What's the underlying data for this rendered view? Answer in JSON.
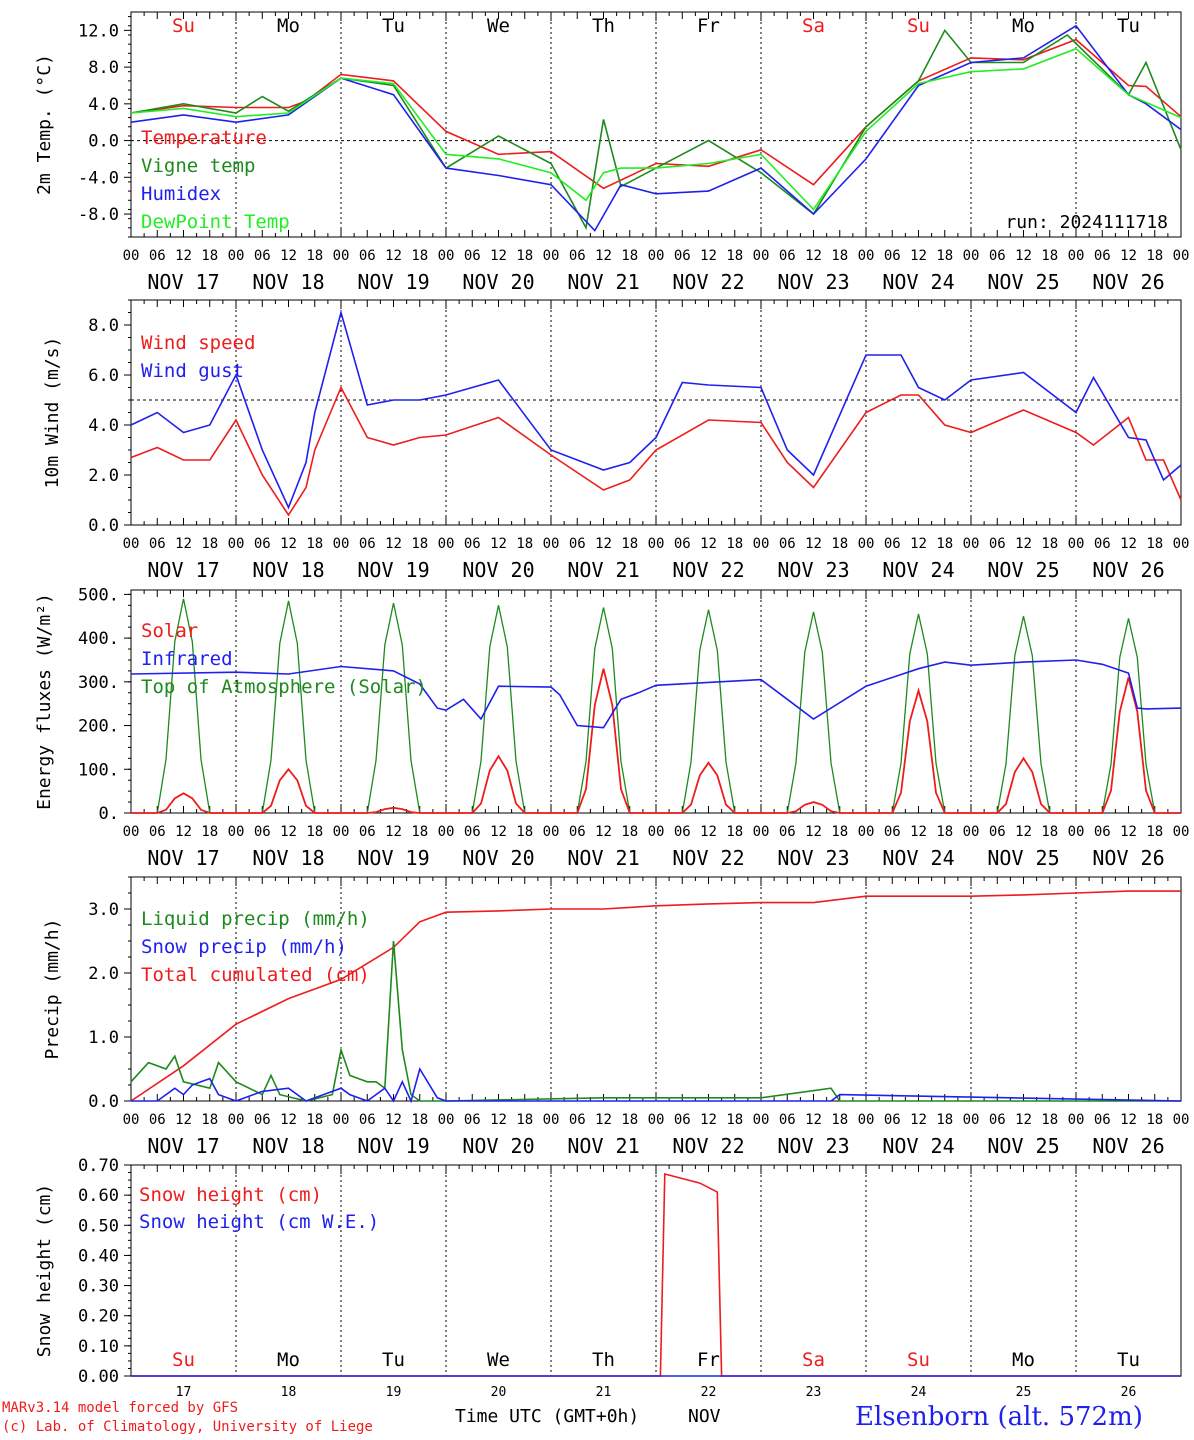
{
  "run_label": "run: 2024111718",
  "days_top": [
    "Su",
    "Mo",
    "Tu",
    "We",
    "Th",
    "Fr",
    "Sa",
    "Su",
    "Mo",
    "Tu"
  ],
  "weekend_color": "#ee1c1c",
  "weekday_color": "#000000",
  "date_labels": [
    "NOV 17",
    "NOV 18",
    "NOV 19",
    "NOV 20",
    "NOV 21",
    "NOV 22",
    "NOV 23",
    "NOV 24",
    "NOV 25",
    "NOV 26"
  ],
  "hour_ticks": [
    "00",
    "06",
    "12",
    "18"
  ],
  "bottom_axis": {
    "day_numbers": [
      "17",
      "18",
      "19",
      "20",
      "21",
      "22",
      "23",
      "24",
      "25",
      "26"
    ],
    "xlabel": "Time UTC (GMT+0h)",
    "month": "NOV"
  },
  "footer": {
    "credit_line1": "MARv3.14 model forced by GFS",
    "credit_line2": "(c) Lab. of Climatology, University of Liege",
    "station": "Elsenborn (alt. 572m)"
  },
  "colors": {
    "red": "#ee1c1c",
    "green": "#1e8a1e",
    "blue": "#2020ee",
    "lightgreen": "#22ee22"
  },
  "chart_data": [
    {
      "type": "line",
      "ylabel": "2m Temp. (°C)",
      "ylim": [
        -10.5,
        14.0
      ],
      "yticks": [
        -8,
        -4,
        0,
        4,
        8,
        12
      ],
      "ytick_labels": [
        "-8.0",
        "-4.0",
        "0.0",
        "4.0",
        "8.0",
        "12.0"
      ],
      "dashed_y": 0,
      "x_hours_from": 0,
      "x_units": "hours from 00 UTC Nov 17",
      "legend": [
        {
          "name": "Temperature",
          "color": "#ee1c1c"
        },
        {
          "name": "Vigne temp",
          "color": "#1e8a1e"
        },
        {
          "name": "Humidex",
          "color": "#2020ee"
        },
        {
          "name": "DewPoint Temp",
          "color": "#22ee22"
        }
      ],
      "series": [
        {
          "name": "Temperature",
          "color": "#ee1c1c",
          "x": [
            0,
            12,
            24,
            36,
            40,
            48,
            60,
            72,
            84,
            96,
            108,
            120,
            132,
            144,
            156,
            168,
            180,
            192,
            204,
            216,
            228,
            232,
            240
          ],
          "y": [
            3.0,
            3.8,
            3.6,
            3.6,
            4.3,
            7.2,
            6.5,
            1.0,
            -1.5,
            -1.2,
            -5.2,
            -2.5,
            -2.8,
            -1.0,
            -4.8,
            1.5,
            6.5,
            9.0,
            8.8,
            11.0,
            6.0,
            5.9,
            2.6
          ]
        },
        {
          "name": "Vigne temp",
          "color": "#1e8a1e",
          "x": [
            0,
            12,
            24,
            30,
            36,
            48,
            60,
            72,
            84,
            96,
            104,
            108,
            112,
            120,
            132,
            144,
            156,
            168,
            180,
            186,
            192,
            204,
            214,
            228,
            232,
            240
          ],
          "y": [
            3.0,
            4.0,
            3.0,
            4.8,
            3.2,
            6.8,
            6.0,
            -3.0,
            0.5,
            -2.5,
            -9.5,
            2.3,
            -5.0,
            -3.0,
            0.0,
            -3.5,
            -8.0,
            1.5,
            6.5,
            12.0,
            8.5,
            8.5,
            11.5,
            5.0,
            8.5,
            -1.0
          ]
        },
        {
          "name": "Humidex",
          "color": "#2020ee",
          "x": [
            0,
            12,
            24,
            36,
            48,
            60,
            72,
            84,
            96,
            106,
            112,
            120,
            132,
            144,
            156,
            168,
            180,
            192,
            204,
            216,
            228,
            232,
            240
          ],
          "y": [
            2.0,
            2.8,
            2.0,
            2.8,
            6.8,
            5.0,
            -3.0,
            -3.8,
            -4.8,
            -9.8,
            -4.8,
            -5.8,
            -5.5,
            -3.0,
            -8.0,
            -2.0,
            6.0,
            8.5,
            9.0,
            12.5,
            5.0,
            4.0,
            1.2
          ]
        },
        {
          "name": "DewPoint Temp",
          "color": "#22ee22",
          "x": [
            0,
            12,
            24,
            36,
            48,
            60,
            72,
            84,
            96,
            104,
            108,
            112,
            120,
            132,
            144,
            156,
            168,
            180,
            192,
            204,
            216,
            228,
            240
          ],
          "y": [
            3.0,
            3.5,
            2.6,
            3.0,
            6.8,
            6.2,
            -1.5,
            -2.0,
            -3.5,
            -6.5,
            -3.5,
            -3.0,
            -3.0,
            -2.5,
            -1.5,
            -7.5,
            1.0,
            6.2,
            7.5,
            7.8,
            10.0,
            5.0,
            2.5
          ]
        }
      ]
    },
    {
      "type": "line",
      "ylabel": "10m Wind (m/s)",
      "ylim": [
        0,
        9.0
      ],
      "yticks": [
        0,
        2,
        4,
        6,
        8
      ],
      "ytick_labels": [
        "0.0",
        "2.0",
        "4.0",
        "6.0",
        "8.0"
      ],
      "dashed_y": 5,
      "legend": [
        {
          "name": "Wind speed",
          "color": "#ee1c1c"
        },
        {
          "name": "Wind gust",
          "color": "#2020ee"
        }
      ],
      "series": [
        {
          "name": "Wind speed",
          "color": "#ee1c1c",
          "x": [
            0,
            6,
            12,
            18,
            24,
            30,
            36,
            40,
            42,
            48,
            54,
            60,
            66,
            72,
            84,
            96,
            108,
            114,
            120,
            132,
            144,
            150,
            156,
            168,
            176,
            180,
            186,
            192,
            204,
            216,
            220,
            228,
            232,
            236,
            240
          ],
          "y": [
            2.7,
            3.1,
            2.6,
            2.6,
            4.2,
            2.0,
            0.4,
            1.5,
            3.0,
            5.5,
            3.5,
            3.2,
            3.5,
            3.6,
            4.3,
            2.8,
            1.4,
            1.8,
            3.0,
            4.2,
            4.1,
            2.5,
            1.5,
            4.5,
            5.2,
            5.2,
            4.0,
            3.7,
            4.6,
            3.7,
            3.2,
            4.3,
            2.6,
            2.6,
            1.0
          ]
        },
        {
          "name": "Wind gust",
          "color": "#2020ee",
          "x": [
            0,
            6,
            12,
            18,
            24,
            30,
            36,
            40,
            42,
            48,
            54,
            60,
            66,
            72,
            84,
            96,
            108,
            114,
            120,
            126,
            132,
            144,
            150,
            156,
            168,
            176,
            180,
            186,
            192,
            204,
            216,
            220,
            228,
            232,
            236,
            240
          ],
          "y": [
            4.0,
            4.5,
            3.7,
            4.0,
            6.0,
            3.0,
            0.7,
            2.5,
            4.5,
            8.5,
            4.8,
            5.0,
            5.0,
            5.2,
            5.8,
            3.0,
            2.2,
            2.5,
            3.5,
            5.7,
            5.6,
            5.5,
            3.0,
            2.0,
            6.8,
            6.8,
            5.5,
            5.0,
            5.8,
            6.1,
            4.5,
            5.9,
            3.5,
            3.4,
            1.8,
            2.4
          ]
        }
      ]
    },
    {
      "type": "line",
      "ylabel": "Energy fluxes (W/m²)",
      "ylim": [
        0,
        510
      ],
      "yticks": [
        0,
        100,
        200,
        300,
        400,
        500
      ],
      "ytick_labels": [
        "0.",
        "100.",
        "200.",
        "300.",
        "400.",
        "500."
      ],
      "legend": [
        {
          "name": "Solar",
          "color": "#ee1c1c"
        },
        {
          "name": "Infrared",
          "color": "#2020ee"
        },
        {
          "name": "Top of Atmosphere (Solar)",
          "color": "#1e8a1e"
        }
      ],
      "solar_peaks": [
        45,
        100,
        12,
        130,
        330,
        115,
        25,
        280,
        125,
        310
      ],
      "toa_peaks": [
        490,
        485,
        480,
        475,
        470,
        465,
        460,
        455,
        450,
        445
      ],
      "series": [
        {
          "name": "Infrared",
          "color": "#2020ee",
          "x": [
            0,
            24,
            36,
            48,
            60,
            66,
            70,
            72,
            76,
            80,
            84,
            96,
            98,
            102,
            108,
            112,
            116,
            120,
            144,
            150,
            156,
            168,
            180,
            186,
            192,
            204,
            216,
            222,
            228,
            230,
            232,
            240
          ],
          "y": [
            318,
            322,
            318,
            335,
            325,
            295,
            240,
            235,
            260,
            215,
            290,
            288,
            270,
            200,
            195,
            260,
            275,
            292,
            305,
            260,
            215,
            290,
            330,
            345,
            338,
            345,
            350,
            340,
            320,
            240,
            238,
            240
          ]
        }
      ]
    },
    {
      "type": "line",
      "ylabel": "Precip (mm/h)",
      "ylim": [
        0,
        3.5
      ],
      "yticks": [
        0,
        1,
        2,
        3
      ],
      "ytick_labels": [
        "0.0",
        "1.0",
        "2.0",
        "3.0"
      ],
      "legend": [
        {
          "name": "Liquid precip (mm/h)",
          "color": "#1e8a1e"
        },
        {
          "name": "Snow precip (mm/h)",
          "color": "#2020ee"
        },
        {
          "name": "Total cumulated (cm)",
          "color": "#ee1c1c"
        }
      ],
      "series": [
        {
          "name": "Total cumulated (cm)",
          "color": "#ee1c1c",
          "x": [
            0,
            12,
            24,
            36,
            48,
            60,
            66,
            72,
            84,
            96,
            108,
            120,
            132,
            144,
            156,
            168,
            180,
            192,
            204,
            216,
            228,
            240
          ],
          "y": [
            0.0,
            0.55,
            1.2,
            1.6,
            1.9,
            2.4,
            2.8,
            2.95,
            2.97,
            3.0,
            3.0,
            3.05,
            3.08,
            3.1,
            3.1,
            3.2,
            3.2,
            3.2,
            3.22,
            3.25,
            3.28,
            3.28
          ]
        },
        {
          "name": "Liquid precip (mm/h)",
          "color": "#1e8a1e",
          "x": [
            0,
            4,
            8,
            10,
            12,
            18,
            20,
            24,
            30,
            32,
            34,
            40,
            46,
            48,
            50,
            52,
            54,
            56,
            58,
            60,
            62,
            64,
            66,
            72,
            108,
            144,
            160,
            162,
            168,
            240
          ],
          "y": [
            0.3,
            0.6,
            0.5,
            0.7,
            0.3,
            0.2,
            0.6,
            0.3,
            0.1,
            0.4,
            0.1,
            0.0,
            0.1,
            0.8,
            0.4,
            0.35,
            0.3,
            0.3,
            0.2,
            2.5,
            0.8,
            0.1,
            0.0,
            0.0,
            0.05,
            0.05,
            0.2,
            0.0,
            0.0,
            0.0
          ]
        },
        {
          "name": "Snow precip (mm/h)",
          "color": "#2020ee",
          "x": [
            0,
            6,
            10,
            12,
            14,
            16,
            18,
            20,
            24,
            30,
            36,
            40,
            44,
            48,
            50,
            54,
            56,
            58,
            60,
            62,
            64,
            66,
            70,
            72,
            160,
            162,
            240
          ],
          "y": [
            0.0,
            0.0,
            0.2,
            0.1,
            0.25,
            0.3,
            0.35,
            0.1,
            0.0,
            0.15,
            0.2,
            0.0,
            0.1,
            0.2,
            0.1,
            0.0,
            0.1,
            0.2,
            0.0,
            0.3,
            0.0,
            0.5,
            0.05,
            0.0,
            0.0,
            0.1,
            0.0
          ]
        }
      ]
    },
    {
      "type": "line",
      "ylabel": "Snow height (cm)",
      "ylim": [
        0,
        0.7
      ],
      "yticks": [
        0,
        0.1,
        0.2,
        0.3,
        0.4,
        0.5,
        0.6,
        0.7
      ],
      "ytick_labels": [
        "0.00",
        "0.10",
        "0.20",
        "0.30",
        "0.40",
        "0.50",
        "0.60",
        "0.70"
      ],
      "legend": [
        {
          "name": "Snow height (cm)",
          "color": "#ee1c1c"
        },
        {
          "name": "Snow height (cm W.E.)",
          "color": "#2020ee"
        }
      ],
      "series": [
        {
          "name": "Snow height (cm)",
          "color": "#ee1c1c",
          "x": [
            0,
            121,
            122,
            130,
            134,
            135,
            240
          ],
          "y": [
            0,
            0,
            0.67,
            0.64,
            0.61,
            0,
            0
          ]
        },
        {
          "name": "Snow height (cm W.E.)",
          "color": "#2020ee",
          "x": [
            0,
            240
          ],
          "y": [
            0,
            0
          ]
        }
      ]
    }
  ]
}
